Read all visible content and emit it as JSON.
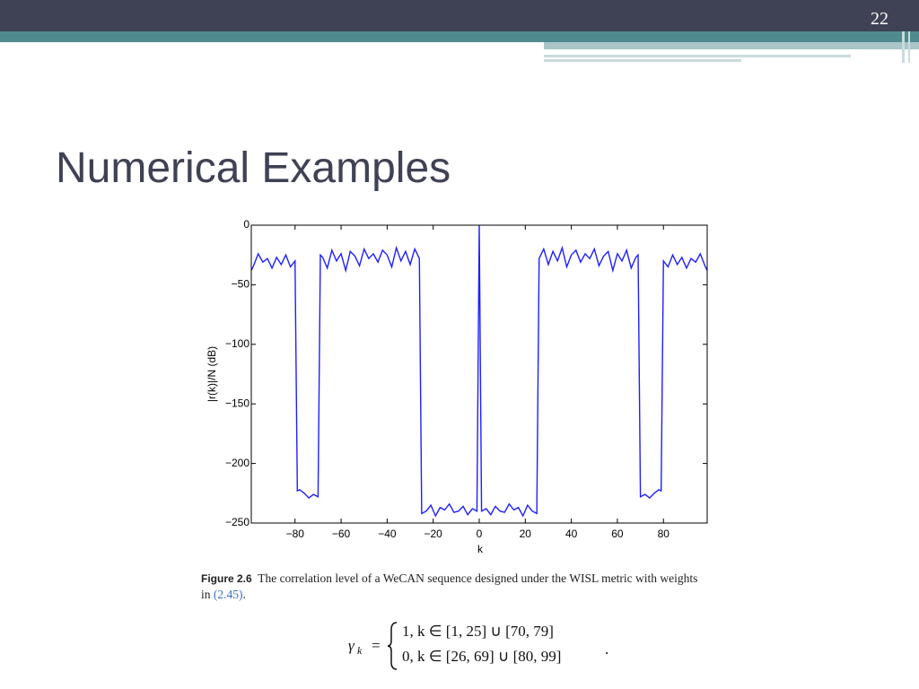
{
  "slide": {
    "page_number": "22",
    "title": "Numerical Examples",
    "caption": {
      "label": "Figure 2.6",
      "text": "The correlation level of a WeCAN sequence designed under the WISL metric with weights in ",
      "ref": "(2.45)",
      "end": "."
    },
    "equation": {
      "lhs": "γ",
      "sub": "k",
      "equals": "=",
      "cases": [
        "1, k ∈ [1, 25] ∪ [70, 79]",
        "0, k ∈ [26, 69] ∪ [80, 99]"
      ],
      "end": "."
    }
  },
  "chart_data": {
    "type": "line",
    "x_label": "k",
    "y_label": "|r(k)|/N (dB)",
    "color": "#1f1fff",
    "x": [
      -99,
      -98,
      -96,
      -94,
      -92,
      -90,
      -88,
      -86,
      -84,
      -82,
      -80,
      -79,
      -78,
      -76,
      -74,
      -72,
      -70,
      -69,
      -68,
      -66,
      -64,
      -62,
      -60,
      -58,
      -56,
      -54,
      -52,
      -50,
      -48,
      -46,
      -44,
      -42,
      -40,
      -38,
      -36,
      -34,
      -32,
      -30,
      -28,
      -26,
      -25,
      -23,
      -21,
      -19,
      -17,
      -15,
      -13,
      -11,
      -9,
      -7,
      -5,
      -3,
      -1,
      0,
      1,
      3,
      5,
      7,
      9,
      11,
      13,
      15,
      17,
      19,
      21,
      23,
      25,
      26,
      28,
      30,
      32,
      34,
      36,
      38,
      40,
      42,
      44,
      46,
      48,
      50,
      52,
      54,
      56,
      58,
      60,
      62,
      64,
      66,
      68,
      69,
      70,
      72,
      74,
      76,
      78,
      79,
      80,
      82,
      84,
      86,
      88,
      90,
      92,
      94,
      96,
      98,
      99
    ],
    "values": [
      -38,
      -34,
      -24,
      -31,
      -28,
      -36,
      -27,
      -33,
      -25,
      -35,
      -30,
      -223,
      -222,
      -225,
      -229,
      -226,
      -228,
      -25,
      -27,
      -36,
      -21,
      -30,
      -24,
      -38,
      -22,
      -26,
      -34,
      -20,
      -28,
      -24,
      -31,
      -21,
      -25,
      -35,
      -19,
      -30,
      -22,
      -33,
      -20,
      -28,
      -242,
      -240,
      -235,
      -244,
      -237,
      -239,
      -234,
      -241,
      -240,
      -236,
      -243,
      -238,
      -240,
      0,
      -240,
      -238,
      -243,
      -236,
      -240,
      -241,
      -234,
      -239,
      -237,
      -244,
      -235,
      -240,
      -242,
      -28,
      -20,
      -33,
      -22,
      -30,
      -19,
      -35,
      -25,
      -21,
      -31,
      -24,
      -28,
      -20,
      -34,
      -26,
      -22,
      -38,
      -24,
      -30,
      -21,
      -36,
      -27,
      -25,
      -228,
      -226,
      -229,
      -225,
      -222,
      -223,
      -30,
      -35,
      -25,
      -33,
      -27,
      -36,
      -28,
      -31,
      -24,
      -34,
      -38
    ],
    "xlim": [
      -99,
      99
    ],
    "ylim": [
      -250,
      0
    ],
    "xticks": [
      {
        "value": -80,
        "label": "−80"
      },
      {
        "value": -60,
        "label": "−60"
      },
      {
        "value": -40,
        "label": "−40"
      },
      {
        "value": -20,
        "label": "−20"
      },
      0,
      20,
      40,
      60,
      80
    ],
    "yticks": [
      {
        "value": -250,
        "label": "−250"
      },
      {
        "value": -200,
        "label": "−200"
      },
      {
        "value": -150,
        "label": "−150"
      },
      {
        "value": -100,
        "label": "−100"
      },
      {
        "value": -50,
        "label": "−50"
      },
      0
    ]
  }
}
